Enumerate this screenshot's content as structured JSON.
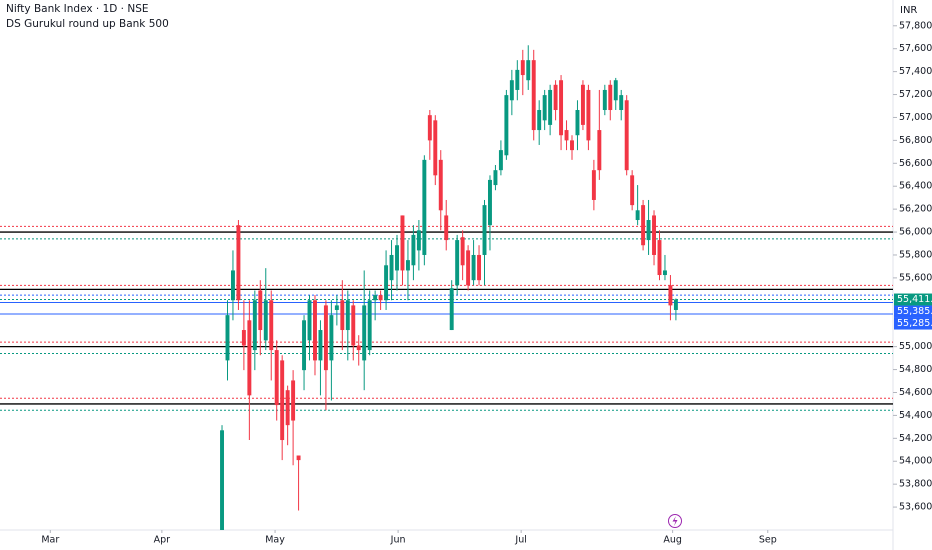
{
  "chart_data": {
    "type": "candlestick",
    "title": "Nifty Bank Index · 1D · NSE",
    "subtitle": "DS Gurukul round up Bank 500",
    "y_unit": "INR",
    "up_color": "#089981",
    "down_color": "#f23645",
    "ylim": [
      53400,
      58025
    ],
    "xlim": [
      -40.6,
      122.7
    ],
    "yticks": [
      {
        "value": 57800,
        "label": "57,800.00"
      },
      {
        "value": 57600,
        "label": "57,600.00"
      },
      {
        "value": 57400,
        "label": "57,400.00"
      },
      {
        "value": 57200,
        "label": "57,200.00"
      },
      {
        "value": 57000,
        "label": "57,000.00"
      },
      {
        "value": 56800,
        "label": "56,800.00"
      },
      {
        "value": 56600,
        "label": "56,600.00"
      },
      {
        "value": 56400,
        "label": "56,400.00"
      },
      {
        "value": 56200,
        "label": "56,200.00"
      },
      {
        "value": 56000,
        "label": "56,000.00"
      },
      {
        "value": 55800,
        "label": "55,800.00"
      },
      {
        "value": 55600,
        "label": "55,600.00"
      },
      {
        "value": 55000,
        "label": "55,000.00"
      },
      {
        "value": 54800,
        "label": "54,800.00"
      },
      {
        "value": 54600,
        "label": "54,600.00"
      },
      {
        "value": 54400,
        "label": "54,400.00"
      },
      {
        "value": 54200,
        "label": "54,200.00"
      },
      {
        "value": 54000,
        "label": "54,000.00"
      },
      {
        "value": 53800,
        "label": "53,800.00"
      },
      {
        "value": 53600,
        "label": "53,600.00"
      }
    ],
    "xticks": [
      {
        "value": -31.4,
        "label": "Mar"
      },
      {
        "value": -11.0,
        "label": "Apr"
      },
      {
        "value": 9.7,
        "label": "May"
      },
      {
        "value": 32.2,
        "label": "Jun"
      },
      {
        "value": 54.7,
        "label": "Jul"
      },
      {
        "value": 82.4,
        "label": "Aug"
      },
      {
        "value": 99.8,
        "label": "Sep"
      }
    ],
    "x": [
      0,
      1,
      2,
      3,
      4,
      5,
      6,
      7,
      8,
      9,
      10,
      11,
      12,
      13,
      14,
      15,
      16,
      17,
      18,
      19,
      20,
      21,
      22,
      23,
      24,
      25,
      26,
      27,
      28,
      29,
      30,
      31,
      32,
      33,
      34,
      35,
      36,
      37,
      38,
      39,
      40,
      41,
      42,
      43,
      44,
      45,
      46,
      47,
      48,
      49,
      50,
      51,
      52,
      53,
      54,
      55,
      56,
      57,
      58,
      59,
      60,
      61,
      62,
      63,
      64,
      65,
      66,
      67,
      68,
      69,
      70,
      71,
      72,
      73,
      74,
      75,
      76,
      77,
      78,
      79,
      80,
      81,
      82,
      83
    ],
    "open": [
      53400,
      54880,
      55405,
      56060,
      55145,
      55230,
      54970,
      55490,
      55055,
      55405,
      54970,
      54880,
      54620,
      54705,
      54050,
      54795,
      55055,
      55405,
      54880,
      55360,
      54880,
      55320,
      55405,
      55145,
      55360,
      55010,
      54880,
      54970,
      55405,
      55450,
      55405,
      55580,
      55665,
      56145,
      55665,
      55710,
      55840,
      55800,
      57020,
      56975,
      56630,
      56145,
      55145,
      55535,
      55955,
      55840,
      55580,
      55800,
      55800,
      56060,
      56410,
      56540,
      56670,
      57150,
      57240,
      57500,
      57325,
      57500,
      56890,
      56975,
      56935,
      57285,
      57325,
      56890,
      56800,
      56845,
      57285,
      57240,
      56540,
      56890,
      57065,
      57285,
      57150,
      57065,
      57150,
      56495,
      56105,
      56235,
      55930,
      56145,
      55930,
      55625,
      55535,
      55320
    ],
    "high": [
      54315,
      55405,
      55840,
      56105,
      55405,
      55405,
      55490,
      55580,
      55685,
      55490,
      55055,
      54925,
      54660,
      54795,
      54050,
      55275,
      55450,
      55450,
      55230,
      55405,
      55405,
      55450,
      55580,
      55490,
      55405,
      55100,
      55665,
      55490,
      55490,
      55490,
      55840,
      55930,
      55975,
      56145,
      55930,
      56060,
      56105,
      56670,
      57065,
      57020,
      56715,
      56280,
      55580,
      55975,
      56015,
      55885,
      55930,
      55885,
      56280,
      56495,
      56585,
      56800,
      57240,
      57415,
      57500,
      57590,
      57630,
      57590,
      57150,
      57240,
      57285,
      57325,
      57370,
      56975,
      56845,
      57150,
      57325,
      57285,
      56630,
      57240,
      57285,
      57325,
      57345,
      57240,
      57195,
      56540,
      56410,
      56280,
      56280,
      56190,
      56015,
      55800,
      55625,
      55420
    ],
    "low": [
      53400,
      54705,
      55230,
      55320,
      54795,
      54185,
      54795,
      54925,
      54970,
      54705,
      54355,
      54010,
      54140,
      53965,
      53570,
      54620,
      54880,
      54750,
      54575,
      54445,
      54530,
      55185,
      54970,
      54880,
      54880,
      54835,
      54620,
      54925,
      55230,
      55320,
      55320,
      55405,
      55490,
      55535,
      55405,
      55580,
      55665,
      55710,
      56630,
      56410,
      56015,
      55840,
      55145,
      55450,
      55580,
      55490,
      55535,
      55535,
      55535,
      55840,
      56365,
      56495,
      56630,
      57020,
      57150,
      57195,
      57240,
      56800,
      56760,
      56890,
      56845,
      56975,
      56715,
      56715,
      56630,
      56715,
      56890,
      56715,
      56190,
      56455,
      57020,
      56975,
      57065,
      56975,
      56495,
      56190,
      56060,
      55840,
      55800,
      55710,
      55580,
      55580,
      55230,
      55230
    ],
    "close": [
      54270,
      55275,
      55665,
      55405,
      55010,
      54575,
      55405,
      55145,
      55405,
      54970,
      54490,
      54185,
      54315,
      54355,
      54010,
      55230,
      55405,
      54880,
      55145,
      54795,
      55275,
      55360,
      55145,
      55405,
      55010,
      54970,
      55360,
      55405,
      55450,
      55405,
      55710,
      55800,
      55885,
      55665,
      55755,
      55975,
      56015,
      56630,
      56800,
      56495,
      56190,
      55930,
      55510,
      55930,
      55710,
      55535,
      55800,
      55580,
      56235,
      56455,
      56540,
      56715,
      57195,
      57325,
      57415,
      57370,
      57500,
      56890,
      57065,
      57195,
      57240,
      57065,
      56845,
      56800,
      56715,
      57065,
      56935,
      56800,
      56280,
      56540,
      57240,
      57065,
      57325,
      57195,
      56540,
      56235,
      56190,
      55885,
      56105,
      55800,
      55625,
      55665,
      55360,
      55411.15
    ],
    "levels": [
      {
        "value": 56050,
        "color": "#f23645",
        "style": "dotted"
      },
      {
        "value": 56000,
        "color": "#000000",
        "style": "solid"
      },
      {
        "value": 55940,
        "color": "#089981",
        "style": "dotted"
      },
      {
        "value": 55535,
        "color": "#f23645",
        "style": "dotted"
      },
      {
        "value": 55500,
        "color": "#000000",
        "style": "solid"
      },
      {
        "value": 55450,
        "color": "#2962ff",
        "style": "dotted"
      },
      {
        "value": 55040,
        "color": "#f23645",
        "style": "dotted"
      },
      {
        "value": 55000,
        "color": "#000000",
        "style": "solid"
      },
      {
        "value": 54940,
        "color": "#089981",
        "style": "dotted"
      },
      {
        "value": 54550,
        "color": "#f23645",
        "style": "dotted"
      },
      {
        "value": 54500,
        "color": "#000000",
        "style": "solid"
      },
      {
        "value": 54445,
        "color": "#089981",
        "style": "dotted"
      }
    ],
    "price_lines": [
      {
        "value": 55411.15,
        "label": "55,411.15",
        "color": "#089981",
        "style": "dotted"
      },
      {
        "value": 55385.2,
        "label": "55,385.20",
        "color": "#2962ff",
        "style": "solid"
      },
      {
        "value": 55285.1,
        "label": "55,285.10",
        "color": "#2962ff",
        "style": "solid"
      }
    ]
  }
}
